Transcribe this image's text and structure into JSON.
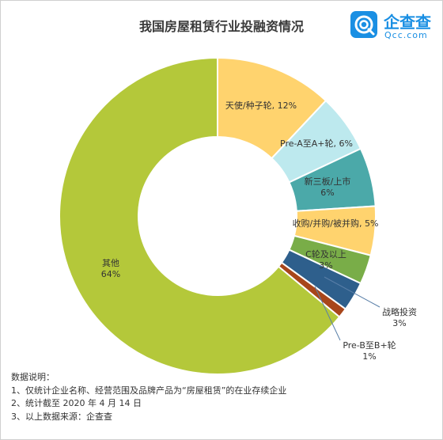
{
  "title": "我国房屋租赁行业投融资情况",
  "logo": {
    "name": "企查查",
    "sub": "Qcc.com",
    "color": "#1a8fe3"
  },
  "chart_data": {
    "type": "pie",
    "title": "我国房屋租赁行业投融资情况",
    "slices": [
      {
        "label": "天使/种子轮",
        "value": 12,
        "text": "天使/种子轮, 12%",
        "color": "#ffd36e"
      },
      {
        "label": "Pre-A至A+轮",
        "value": 6,
        "text": "Pre-A至A+轮, 6%",
        "color": "#bde9ee"
      },
      {
        "label": "新三板/上市",
        "value": 6,
        "text": "新三板/上市\n6%",
        "color": "#4ba9a9"
      },
      {
        "label": "收购/并购/被并购",
        "value": 5,
        "text": "收购/并购/被并购, 5%",
        "color": "#ffd36e"
      },
      {
        "label": "C轮及以上",
        "value": 3,
        "text": "C轮及以上\n3%",
        "color": "#79ad48"
      },
      {
        "label": "战略投资",
        "value": 3,
        "text": "战略投资\n3%",
        "color": "#2e5f8c"
      },
      {
        "label": "Pre-B至B+轮",
        "value": 1,
        "text": "Pre-B至B+轮\n1%",
        "color": "#a8461b"
      },
      {
        "label": "其他",
        "value": 64,
        "text": "其他\n64%",
        "color": "#b4c83a"
      }
    ]
  },
  "notes": {
    "heading": "数据说明：",
    "lines": [
      "1、仅统计企业名称、经营范围及品牌产品为“房屋租赁”的在业存续企业",
      "2、统计截至 2020 年 4 月 14 日",
      "3、以上数据来源：企查查"
    ]
  }
}
